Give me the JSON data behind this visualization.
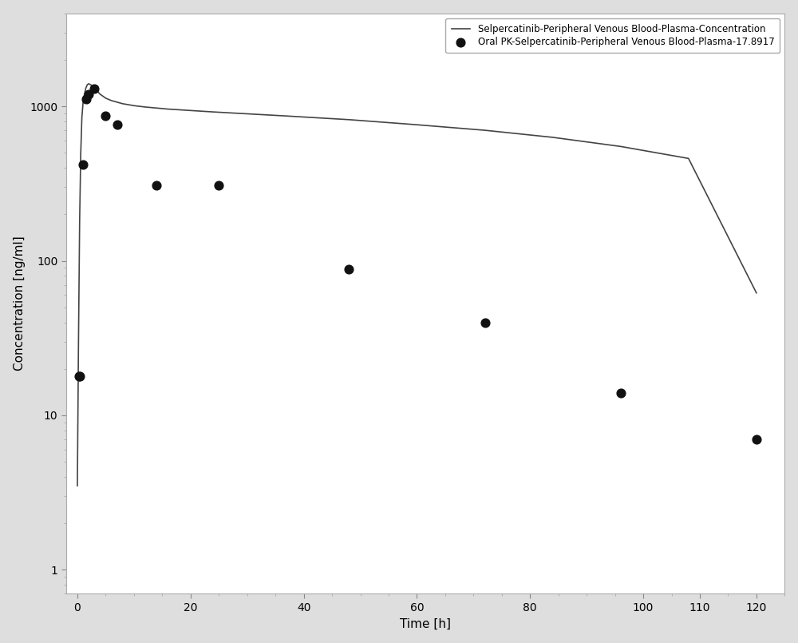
{
  "line_label": "Selpercatinib-Peripheral Venous Blood-Plasma-Concentration",
  "scatter_label": "Oral PK-Selpercatinib-Peripheral Venous Blood-Plasma-17.8917",
  "xlabel": "Time [h]",
  "ylabel": "Concentration [ng/ml]",
  "xlim": [
    -2,
    125
  ],
  "ylim": [
    0.7,
    4000
  ],
  "xticks": [
    0,
    20,
    40,
    60,
    80,
    100,
    110,
    120
  ],
  "yticks": [
    1,
    10,
    100,
    1000
  ],
  "background_color": "#dedede",
  "plot_bg_color": "#ffffff",
  "line_color": "#444444",
  "scatter_color": "#111111",
  "line_t": [
    0.0,
    0.2,
    0.4,
    0.6,
    0.8,
    1.0,
    1.25,
    1.5,
    1.75,
    2.0,
    2.5,
    3.0,
    4.0,
    5.0,
    6.0,
    8.0,
    10.0,
    12.0,
    16.0,
    24.0,
    36.0,
    48.0,
    60.0,
    72.0,
    84.0,
    96.0,
    108.0,
    120.0
  ],
  "line_c": [
    3.5,
    30,
    180,
    500,
    850,
    1050,
    1200,
    1310,
    1380,
    1400,
    1370,
    1310,
    1200,
    1130,
    1090,
    1040,
    1010,
    990,
    960,
    920,
    870,
    820,
    760,
    700,
    630,
    550,
    460,
    62
  ],
  "scatter_t": [
    0.25,
    0.5,
    1.0,
    1.5,
    2.0,
    3.0,
    5.0,
    7.0,
    14.0,
    25.0,
    48.0,
    72.0,
    96.0,
    120.0
  ],
  "scatter_c": [
    18,
    18,
    420,
    1120,
    1200,
    1300,
    870,
    760,
    310,
    310,
    88,
    40,
    14,
    7
  ],
  "legend_fontsize": 8.5,
  "axis_fontsize": 11,
  "tick_fontsize": 10,
  "figsize": [
    10.0,
    8.05
  ],
  "dpi": 100
}
